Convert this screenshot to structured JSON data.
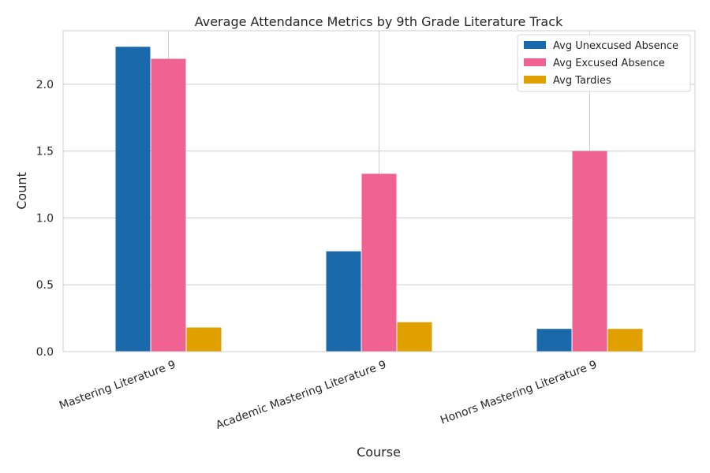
{
  "chart_data": {
    "type": "bar",
    "title": "Average Attendance Metrics by 9th Grade Literature Track",
    "xlabel": "Course",
    "ylabel": "Count",
    "ylim": [
      0,
      2.4
    ],
    "yticks": [
      0.0,
      0.5,
      1.0,
      1.5,
      2.0
    ],
    "ytick_labels": [
      "0.0",
      "0.5",
      "1.0",
      "1.5",
      "2.0"
    ],
    "categories": [
      "Mastering Literature 9",
      "Academic Mastering Literature 9",
      "Honors Mastering Literature 9"
    ],
    "series": [
      {
        "name": "Avg Unexcused Absence",
        "color": "#1a69aa",
        "values": [
          2.28,
          0.75,
          0.17
        ]
      },
      {
        "name": "Avg Excused Absence",
        "color": "#f06292",
        "values": [
          2.19,
          1.33,
          1.5
        ]
      },
      {
        "name": "Avg Tardies",
        "color": "#e0a100",
        "values": [
          0.18,
          0.22,
          0.17
        ]
      }
    ],
    "grid": true,
    "legend_position": "top-right"
  }
}
